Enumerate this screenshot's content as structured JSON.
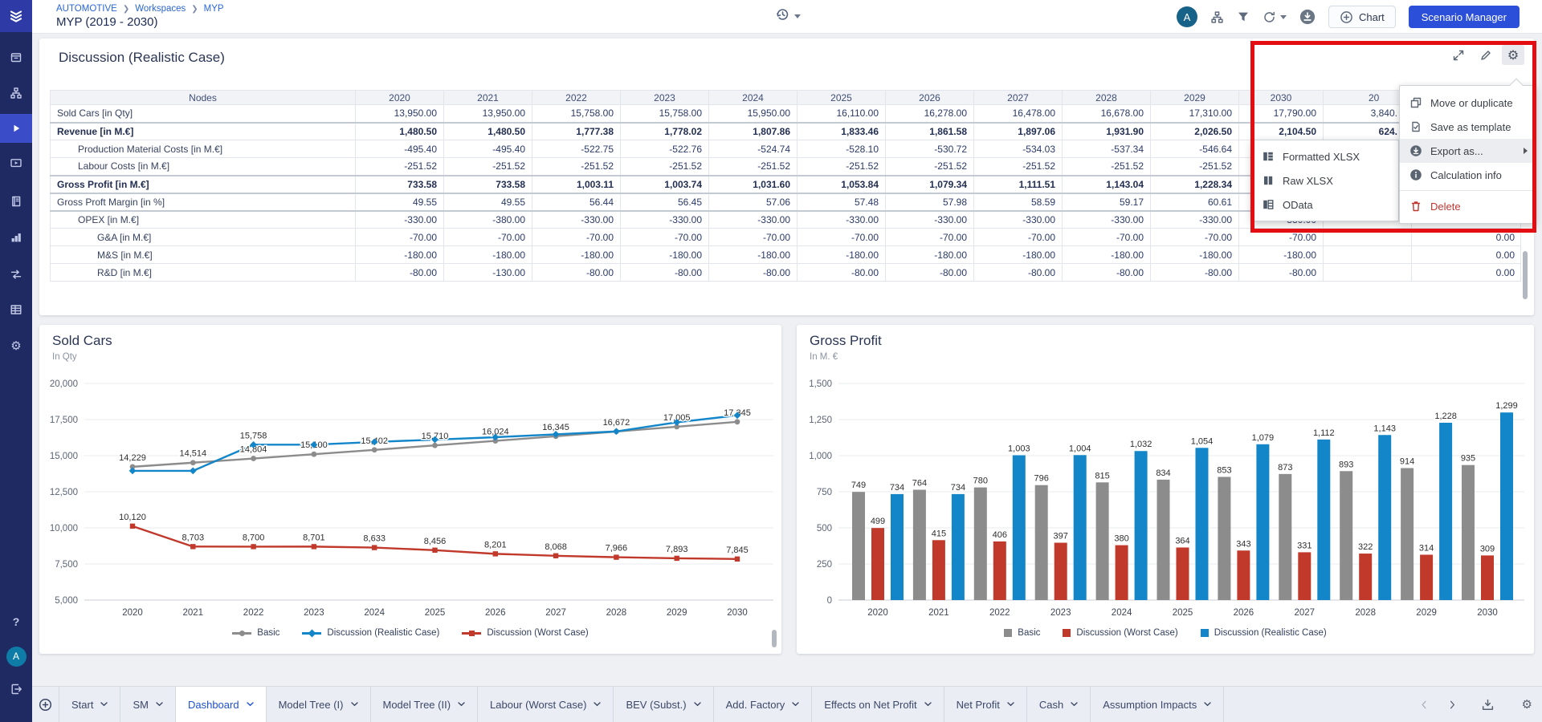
{
  "topbar": {
    "breadcrumb": [
      "AUTOMOTIVE",
      "Workspaces",
      "MYP"
    ],
    "title": "MYP (2019 - 2030)",
    "buttons": {
      "chart": "Chart",
      "scenario_manager": "Scenario Manager"
    },
    "avatar": "A"
  },
  "sidebar": {
    "help": "?",
    "avatar": "A",
    "items": [
      "workspace-icon",
      "model-tree-icon",
      "simulation-play-icon",
      "presentation-icon",
      "notebook-icon",
      "chart-blocks-icon",
      "flows-icon",
      "data-table-icon",
      "settings-gear-icon"
    ],
    "active_item": "simulation-play-icon"
  },
  "table": {
    "title": "Discussion (Realistic Case)",
    "columns": [
      "Nodes",
      "2020",
      "2021",
      "2022",
      "2023",
      "2024",
      "2025",
      "2026",
      "2027",
      "2028",
      "2029",
      "2030"
    ],
    "overflow_header": "20",
    "rows": [
      {
        "label": "Sold Cars [in Qty]",
        "indent": 0,
        "bold": false,
        "sep": false,
        "values": [
          "13,950.00",
          "13,950.00",
          "15,758.00",
          "15,758.00",
          "15,950.00",
          "16,110.00",
          "16,278.00",
          "16,478.00",
          "16,678.00",
          "17,310.00",
          "17,790.00"
        ],
        "overflow": "3,840.",
        "overflow2": ""
      },
      {
        "label": "Revenue [in M.€]",
        "indent": 0,
        "bold": true,
        "sep": true,
        "values": [
          "1,480.50",
          "1,480.50",
          "1,777.38",
          "1,778.02",
          "1,807.86",
          "1,833.46",
          "1,861.58",
          "1,897.06",
          "1,931.90",
          "2,026.50",
          "2,104.50"
        ],
        "overflow": "624.",
        "overflow2": ""
      },
      {
        "label": "Production Material Costs [in M.€]",
        "indent": 1,
        "bold": false,
        "sep": false,
        "values": [
          "-495.40",
          "-495.40",
          "-522.75",
          "-522.76",
          "-524.74",
          "-528.10",
          "-530.72",
          "-534.03",
          "-537.34",
          "-546.64",
          ""
        ],
        "overflow": "",
        "overflow2": ""
      },
      {
        "label": "Labour Costs [in M.€]",
        "indent": 1,
        "bold": false,
        "sep": false,
        "values": [
          "-251.52",
          "-251.52",
          "-251.52",
          "-251.52",
          "-251.52",
          "-251.52",
          "-251.52",
          "-251.52",
          "-251.52",
          "-251.52",
          ""
        ],
        "overflow": "",
        "overflow2": ""
      },
      {
        "label": "Gross Profit [in M.€]",
        "indent": 0,
        "bold": true,
        "sep": true,
        "values": [
          "733.58",
          "733.58",
          "1,003.11",
          "1,003.74",
          "1,031.60",
          "1,053.84",
          "1,079.34",
          "1,111.51",
          "1,143.04",
          "1,228.34",
          ""
        ],
        "overflow": "",
        "overflow2": ""
      },
      {
        "label": "Gross Proft Margin [in %]",
        "indent": 0,
        "bold": false,
        "sep": true,
        "values": [
          "49.55",
          "49.55",
          "56.44",
          "56.45",
          "57.06",
          "57.48",
          "57.98",
          "58.59",
          "59.17",
          "60.61",
          ""
        ],
        "overflow": "",
        "overflow2": ""
      },
      {
        "label": "OPEX [in M.€]",
        "indent": 1,
        "bold": false,
        "sep": true,
        "values": [
          "-330.00",
          "-380.00",
          "-330.00",
          "-330.00",
          "-330.00",
          "-330.00",
          "-330.00",
          "-330.00",
          "-330.00",
          "-330.00",
          "-330.00"
        ],
        "overflow": "",
        "overflow2": "0.00"
      },
      {
        "label": "G&A [in M.€]",
        "indent": 2,
        "bold": false,
        "sep": false,
        "values": [
          "-70.00",
          "-70.00",
          "-70.00",
          "-70.00",
          "-70.00",
          "-70.00",
          "-70.00",
          "-70.00",
          "-70.00",
          "-70.00",
          "-70.00"
        ],
        "overflow": "",
        "overflow2": "0.00"
      },
      {
        "label": "M&S [in M.€]",
        "indent": 2,
        "bold": false,
        "sep": false,
        "values": [
          "-180.00",
          "-180.00",
          "-180.00",
          "-180.00",
          "-180.00",
          "-180.00",
          "-180.00",
          "-180.00",
          "-180.00",
          "-180.00",
          "-180.00"
        ],
        "overflow": "",
        "overflow2": "0.00"
      },
      {
        "label": "R&D [in M.€]",
        "indent": 2,
        "bold": false,
        "sep": false,
        "values": [
          "-80.00",
          "-130.00",
          "-80.00",
          "-80.00",
          "-80.00",
          "-80.00",
          "-80.00",
          "-80.00",
          "-80.00",
          "-80.00",
          "-80.00"
        ],
        "overflow": "",
        "overflow2": "0.00"
      }
    ]
  },
  "context_menu": {
    "items": [
      {
        "label": "Move or duplicate",
        "icon": "duplicate",
        "style": "normal"
      },
      {
        "label": "Save as template",
        "icon": "template",
        "style": "normal"
      },
      {
        "label": "Export as...",
        "icon": "exportC",
        "style": "highlight-submenu"
      },
      {
        "label": "Calculation info",
        "icon": "info",
        "style": "normal"
      },
      {
        "label": "Delete",
        "icon": "trash",
        "style": "danger"
      }
    ]
  },
  "export_submenu": {
    "items": [
      {
        "label": "Formatted XLSX",
        "icon": "fmtx"
      },
      {
        "label": "Raw XLSX",
        "icon": "rawx"
      },
      {
        "label": "OData",
        "icon": "odata"
      }
    ]
  },
  "chart_data": [
    {
      "type": "line",
      "title": "Sold Cars",
      "subtitle": "In Qty",
      "categories": [
        "2020",
        "2021",
        "2022",
        "2023",
        "2024",
        "2025",
        "2026",
        "2027",
        "2028",
        "2029",
        "2030"
      ],
      "series": [
        {
          "name": "Basic",
          "color": "#8c8c8c",
          "marker": "circle",
          "labels": "all",
          "values": [
            14229,
            14514,
            14804,
            15100,
            15402,
            15710,
            16024,
            16345,
            16672,
            17005,
            17345
          ]
        },
        {
          "name": "Discussion (Realistic Case)",
          "color": "#1386c9",
          "marker": "diamond",
          "labels": [
            2
          ],
          "values": [
            13950,
            13950,
            15758,
            15758,
            15950,
            16110,
            16278,
            16478,
            16678,
            17310,
            17790
          ]
        },
        {
          "name": "Discussion (Worst Case)",
          "color": "#c0392b",
          "marker": "square",
          "labels": "all",
          "values": [
            10120,
            8703,
            8700,
            8701,
            8633,
            8456,
            8201,
            8068,
            7966,
            7893,
            7845
          ]
        }
      ],
      "ylim": [
        5000,
        20000
      ],
      "ytick_step": 2500,
      "grid": true,
      "legend_position": "bottom"
    },
    {
      "type": "bar",
      "title": "Gross Profit",
      "subtitle": "In M. €",
      "categories": [
        "2020",
        "2021",
        "2022",
        "2023",
        "2024",
        "2025",
        "2026",
        "2027",
        "2028",
        "2029",
        "2030"
      ],
      "series": [
        {
          "name": "Basic",
          "color": "#8c8c8c",
          "values": [
            749,
            764,
            780,
            796,
            815,
            834,
            853,
            873,
            893,
            914,
            935
          ]
        },
        {
          "name": "Discussion (Worst Case)",
          "color": "#c0392b",
          "values": [
            499,
            415,
            406,
            397,
            380,
            364,
            343,
            331,
            322,
            314,
            309
          ]
        },
        {
          "name": "Discussion (Realistic Case)",
          "color": "#1386c9",
          "values": [
            734,
            734,
            1003,
            1004,
            1032,
            1054,
            1079,
            1112,
            1143,
            1228,
            1299
          ]
        }
      ],
      "ylim": [
        0,
        1500
      ],
      "ytick_step": 250,
      "grid": true,
      "legend_position": "bottom"
    }
  ],
  "tabbar": {
    "active": "Dashboard",
    "tabs": [
      "Start",
      "SM",
      "Dashboard",
      "Model Tree (I)",
      "Model Tree (II)",
      "Labour (Worst Case)",
      "BEV (Subst.)",
      "Add. Factory",
      "Effects on Net Profit",
      "Net Profit",
      "Cash",
      "Assumption Impacts"
    ]
  }
}
